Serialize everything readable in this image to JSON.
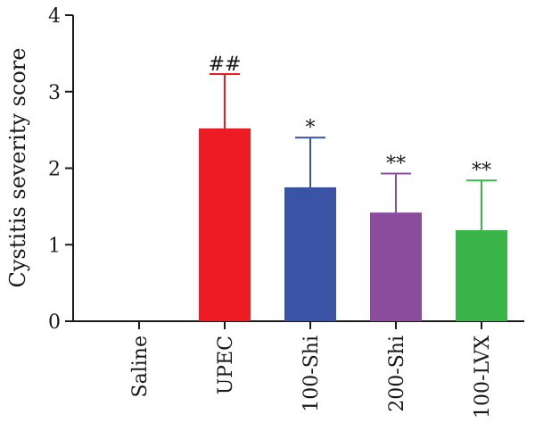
{
  "chart_data": {
    "type": "bar",
    "title": "",
    "xlabel": "",
    "ylabel": "Cystitis severity score",
    "ylim": [
      0,
      4
    ],
    "yticks": [
      0,
      1,
      2,
      3,
      4
    ],
    "grid": false,
    "legend": "none",
    "categories": [
      "Saline",
      "UPEC",
      "100-Shi",
      "200-Shi",
      "100-LVX"
    ],
    "values": [
      0,
      2.52,
      1.75,
      1.42,
      1.19
    ],
    "error_upper": [
      0,
      0.71,
      0.65,
      0.51,
      0.65
    ],
    "annotations": [
      "",
      "##",
      "*",
      "**",
      "**"
    ],
    "colors": [
      "#ffffff",
      "#ed1c24",
      "#3a53a4",
      "#8b4c9e",
      "#39b54a"
    ],
    "axis_color": "#1a1a1a"
  }
}
